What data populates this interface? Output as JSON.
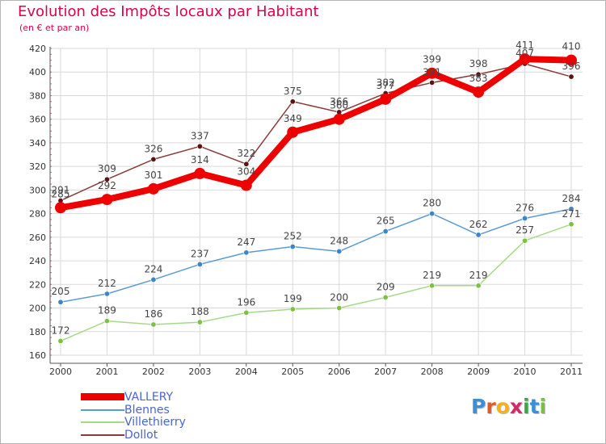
{
  "header": {
    "title": "Evolution des Impôts locaux par Habitant",
    "subtitle": "(en € et par an)"
  },
  "logo": {
    "letters": [
      "P",
      "r",
      "o",
      "x",
      "i",
      "t",
      "i"
    ],
    "colors": [
      "#3a8fd8",
      "#e05a2a",
      "#f2b21b",
      "#d02a6a",
      "#3aa84a",
      "#3a8fd8",
      "#7ac040"
    ]
  },
  "chart_data": {
    "type": "line",
    "x": [
      "2000",
      "2001",
      "2002",
      "2003",
      "2004",
      "2005",
      "2006",
      "2007",
      "2008",
      "2009",
      "2010",
      "2011"
    ],
    "ylim": [
      160,
      420
    ],
    "yticks": [
      160,
      180,
      200,
      220,
      240,
      260,
      280,
      300,
      320,
      340,
      360,
      380,
      400,
      420
    ],
    "grid": true,
    "legend_position": "bottom-left",
    "series": [
      {
        "name": "VALLERY",
        "color": "#ee0000",
        "emphasis": true,
        "values": [
          285,
          292,
          301,
          314,
          304,
          349,
          360,
          377,
          399,
          383,
          411,
          410
        ],
        "labels": [
          "285",
          "292",
          "301",
          "314",
          "304",
          "349",
          "360",
          "377",
          "399",
          "383",
          "411",
          "410"
        ]
      },
      {
        "name": "Blennes",
        "color": "#5b9bd5",
        "marker": "#3d85c6",
        "values": [
          205,
          212,
          224,
          237,
          247,
          252,
          248,
          265,
          280,
          262,
          276,
          284
        ],
        "labels": [
          "205",
          "212",
          "224",
          "237",
          "247",
          "252",
          "248",
          "265",
          "280",
          "262",
          "276",
          "284"
        ]
      },
      {
        "name": "Villethierry",
        "color": "#a8d88a",
        "marker": "#7cc242",
        "values": [
          172,
          189,
          186,
          188,
          196,
          199,
          200,
          209,
          219,
          219,
          257,
          271
        ],
        "labels": [
          "172",
          "189",
          "186",
          "188",
          "196",
          "199",
          "200",
          "209",
          "219",
          "219",
          "257",
          "271"
        ]
      },
      {
        "name": "Dollot",
        "color": "#8b3a3a",
        "marker": "#5a1414",
        "values": [
          291,
          309,
          326,
          337,
          322,
          375,
          366,
          382,
          391,
          398,
          407,
          396
        ],
        "labels": [
          "291",
          "309",
          "326",
          "337",
          "322",
          "375",
          "366",
          "382",
          "391",
          "398",
          "407",
          "396"
        ]
      }
    ]
  }
}
